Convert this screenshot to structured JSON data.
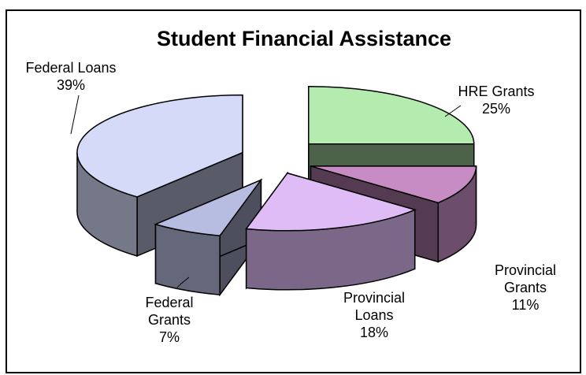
{
  "chart_data": {
    "type": "pie",
    "title": "Student Financial Assistance",
    "slices": [
      {
        "name": "HRE Grants",
        "percent_label": "25%",
        "value": 25,
        "color": "#b4ecb0",
        "label_lines": [
          "HRE Grants"
        ]
      },
      {
        "name": "Provincial Grants",
        "percent_label": "11%",
        "value": 11,
        "color": "#c78cc4",
        "label_lines": [
          "Provincial",
          "Grants"
        ]
      },
      {
        "name": "Provincial Loans",
        "percent_label": "18%",
        "value": 18,
        "color": "#e0bcf6",
        "label_lines": [
          "Provincial",
          "Loans"
        ]
      },
      {
        "name": "Federal Grants",
        "percent_label": "7%",
        "value": 7,
        "color": "#b7bde0",
        "label_lines": [
          "Federal",
          "Grants"
        ]
      },
      {
        "name": "Federal Loans",
        "percent_label": "39%",
        "value": 39,
        "color": "#d5daf8",
        "label_lines": [
          "Federal Loans"
        ]
      }
    ],
    "exploded": true,
    "style": "3d"
  }
}
